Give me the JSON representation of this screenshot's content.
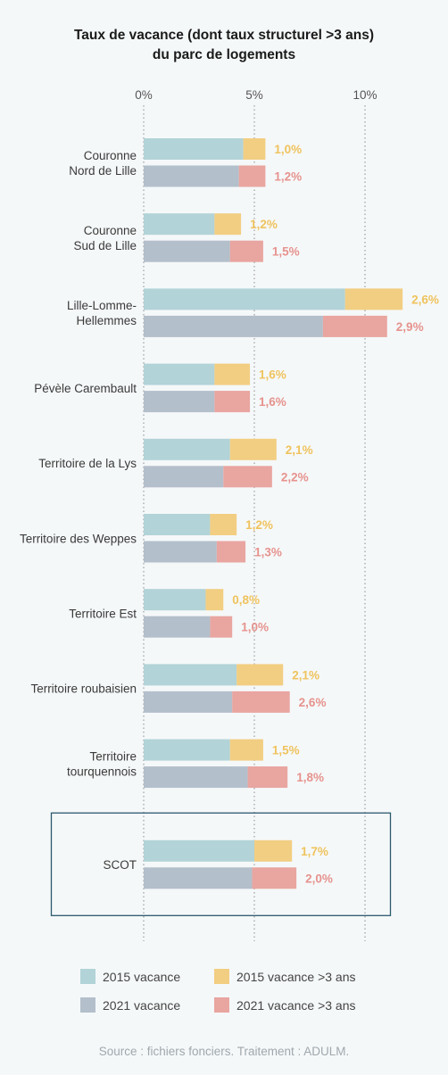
{
  "chart_data": {
    "type": "bar",
    "orientation": "horizontal-stacked",
    "title": "Taux de vacance (dont taux structurel >3 ans)",
    "subtitle": "du parc de logements",
    "x_ticks": [
      "0%",
      "5%",
      "10%"
    ],
    "tick_values": [
      0,
      5,
      10
    ],
    "xlim": [
      0,
      12
    ],
    "gridlines": true,
    "colors": {
      "v2015": "#b2d3d8",
      "v2015_long": "#f2ce82",
      "v2021": "#b3bfcb",
      "v2021_long": "#e9a5a0",
      "label2015": "#efc35e",
      "label2021": "#e6938e",
      "box": "#2c5a6e"
    },
    "categories": [
      {
        "label": [
          "Couronne",
          "Nord de Lille"
        ],
        "v2015_total": 5.5,
        "v2015_long": 1.0,
        "v2015_label": "1,0%",
        "v2021_total": 5.5,
        "v2021_long": 1.2,
        "v2021_label": "1,2%"
      },
      {
        "label": [
          "Couronne",
          "Sud de Lille"
        ],
        "v2015_total": 4.4,
        "v2015_long": 1.2,
        "v2015_label": "1,2%",
        "v2021_total": 5.4,
        "v2021_long": 1.5,
        "v2021_label": "1,5%"
      },
      {
        "label": [
          "Lille-Lomme-",
          "Hellemmes"
        ],
        "v2015_total": 11.7,
        "v2015_long": 2.6,
        "v2015_label": "2,6%",
        "v2021_total": 11.0,
        "v2021_long": 2.9,
        "v2021_label": "2,9%"
      },
      {
        "label": [
          "Pévèle Carembault"
        ],
        "v2015_total": 4.8,
        "v2015_long": 1.6,
        "v2015_label": "1,6%",
        "v2021_total": 4.8,
        "v2021_long": 1.6,
        "v2021_label": "1,6%"
      },
      {
        "label": [
          "Territoire de la Lys"
        ],
        "v2015_total": 6.0,
        "v2015_long": 2.1,
        "v2015_label": "2,1%",
        "v2021_total": 5.8,
        "v2021_long": 2.2,
        "v2021_label": "2,2%"
      },
      {
        "label": [
          "Territoire des Weppes"
        ],
        "v2015_total": 4.2,
        "v2015_long": 1.2,
        "v2015_label": "1,2%",
        "v2021_total": 4.6,
        "v2021_long": 1.3,
        "v2021_label": "1,3%"
      },
      {
        "label": [
          "Territoire Est"
        ],
        "v2015_total": 3.6,
        "v2015_long": 0.8,
        "v2015_label": "0,8%",
        "v2021_total": 4.0,
        "v2021_long": 1.0,
        "v2021_label": "1,0%"
      },
      {
        "label": [
          "Territoire roubaisien"
        ],
        "v2015_total": 6.3,
        "v2015_long": 2.1,
        "v2015_label": "2,1%",
        "v2021_total": 6.6,
        "v2021_long": 2.6,
        "v2021_label": "2,6%"
      },
      {
        "label": [
          "Territoire",
          "tourquennois"
        ],
        "v2015_total": 5.4,
        "v2015_long": 1.5,
        "v2015_label": "1,5%",
        "v2021_total": 6.5,
        "v2021_long": 1.8,
        "v2021_label": "1,8%"
      },
      {
        "label": [
          "SCOT"
        ],
        "v2015_total": 6.7,
        "v2015_long": 1.7,
        "v2015_label": "1,7%",
        "v2021_total": 6.9,
        "v2021_long": 2.0,
        "v2021_label": "2,0%",
        "highlight": true
      }
    ],
    "legend": [
      {
        "key": "v2015",
        "label": "2015 vacance"
      },
      {
        "key": "v2015_long",
        "label": "2015 vacance >3 ans"
      },
      {
        "key": "v2021",
        "label": "2021 vacance"
      },
      {
        "key": "v2021_long",
        "label": "2021 vacance >3 ans"
      }
    ],
    "legend_position": "bottom",
    "source": "Source : fichiers fonciers. Traitement : ADULM."
  }
}
